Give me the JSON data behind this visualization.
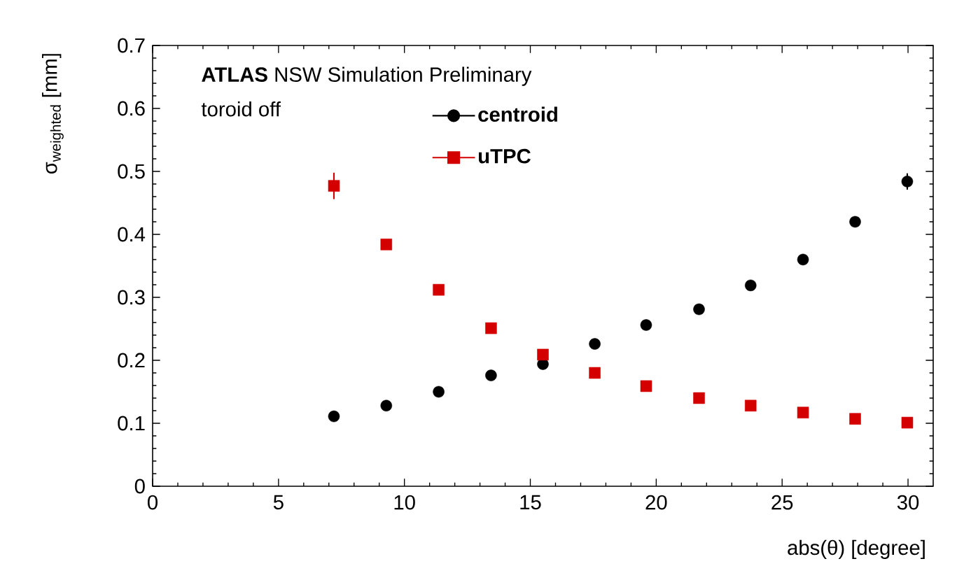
{
  "chart_data": {
    "type": "scatter",
    "xlabel": "abs(θ) [degree]",
    "ylabel": "σ$_{weighted}$ [mm]",
    "annotations": [
      "**ATLAS** NSW Simulation Preliminary",
      "toroid off"
    ],
    "x": [
      7.2,
      9.28,
      11.36,
      13.44,
      15.5,
      17.56,
      19.6,
      21.7,
      23.75,
      25.83,
      27.9,
      29.97
    ],
    "series": [
      {
        "name": "centroid",
        "color": "#000000",
        "marker": "circle",
        "values": [
          0.111,
          0.128,
          0.15,
          0.176,
          0.194,
          0.226,
          0.256,
          0.281,
          0.319,
          0.36,
          0.42,
          0.484
        ],
        "errors": [
          null,
          null,
          null,
          null,
          null,
          null,
          null,
          null,
          null,
          null,
          0.006,
          0.013
        ]
      },
      {
        "name": "uTPC",
        "color": "#d40000",
        "marker": "square",
        "values": [
          0.477,
          0.384,
          0.312,
          0.251,
          0.209,
          0.18,
          0.159,
          0.14,
          0.128,
          0.117,
          0.107,
          0.101
        ],
        "errors": [
          0.021,
          null,
          null,
          null,
          null,
          null,
          null,
          null,
          null,
          null,
          null,
          null
        ]
      }
    ],
    "xlim": [
      0,
      31
    ],
    "ylim": [
      0,
      0.7
    ],
    "xticks": [
      0,
      5,
      10,
      15,
      20,
      25,
      30
    ],
    "yticks": [
      0,
      0.1,
      0.2,
      0.3,
      0.4,
      0.5,
      0.6,
      0.7
    ],
    "legend": "top"
  }
}
